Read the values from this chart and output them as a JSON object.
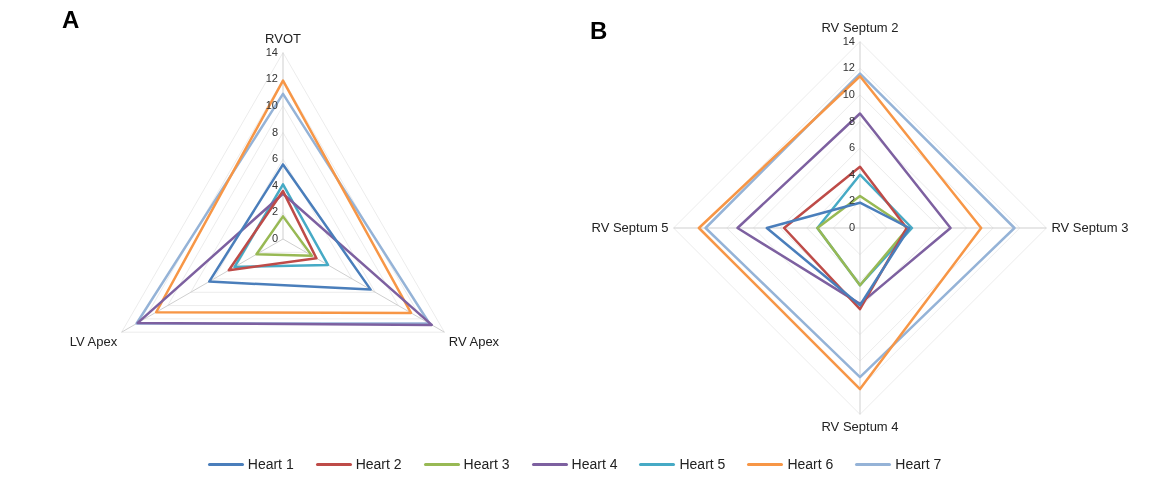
{
  "chart_data": [
    {
      "type": "radar",
      "title": "A",
      "categories": [
        "RVOT",
        "RV Apex",
        "LV Apex"
      ],
      "ylim": [
        0,
        14
      ],
      "yticks": [
        0,
        2,
        4,
        6,
        8,
        10,
        12,
        14
      ],
      "grid": true,
      "legend": "bottom",
      "marker": "none",
      "series": [
        {
          "name": "Heart 1",
          "color": "#4a7ebb",
          "values": [
            5.6,
            7.6,
            6.4
          ]
        },
        {
          "name": "Heart 2",
          "color": "#be4b48",
          "values": [
            3.6,
            2.9,
            4.7
          ]
        },
        {
          "name": "Heart 3",
          "color": "#98b954",
          "values": [
            1.7,
            2.5,
            2.3
          ]
        },
        {
          "name": "Heart 4",
          "color": "#7d60a0",
          "values": [
            3.4,
            12.9,
            12.6
          ]
        },
        {
          "name": "Heart 5",
          "color": "#46aac5",
          "values": [
            4.1,
            3.9,
            4.2
          ]
        },
        {
          "name": "Heart 6",
          "color": "#f79646",
          "values": [
            11.9,
            11.1,
            11.0
          ]
        },
        {
          "name": "Heart 7",
          "color": "#95b3d7",
          "values": [
            10.9,
            12.7,
            12.7
          ]
        }
      ]
    },
    {
      "type": "radar",
      "title": "B",
      "categories": [
        "RV Septum 2",
        "RV Septum 3",
        "RV Septum 4",
        "RV Septum 5"
      ],
      "ylim": [
        0,
        14
      ],
      "yticks": [
        0,
        2,
        4,
        6,
        8,
        10,
        12,
        14
      ],
      "grid": true,
      "legend": "bottom",
      "marker": "none",
      "series": [
        {
          "name": "Heart 1",
          "color": "#4a7ebb",
          "values": [
            1.9,
            3.7,
            5.8,
            7.0
          ]
        },
        {
          "name": "Heart 2",
          "color": "#be4b48",
          "values": [
            4.6,
            3.5,
            6.1,
            5.7
          ]
        },
        {
          "name": "Heart 3",
          "color": "#98b954",
          "values": [
            2.4,
            3.6,
            4.3,
            3.2
          ]
        },
        {
          "name": "Heart 4",
          "color": "#7d60a0",
          "values": [
            8.6,
            6.8,
            5.7,
            9.2
          ]
        },
        {
          "name": "Heart 5",
          "color": "#46aac5",
          "values": [
            4.0,
            3.9,
            4.3,
            3.2
          ]
        },
        {
          "name": "Heart 6",
          "color": "#f79646",
          "values": [
            11.4,
            9.1,
            12.1,
            12.1
          ]
        },
        {
          "name": "Heart 7",
          "color": "#95b3d7",
          "values": [
            11.6,
            11.6,
            11.2,
            11.6
          ]
        }
      ]
    }
  ]
}
